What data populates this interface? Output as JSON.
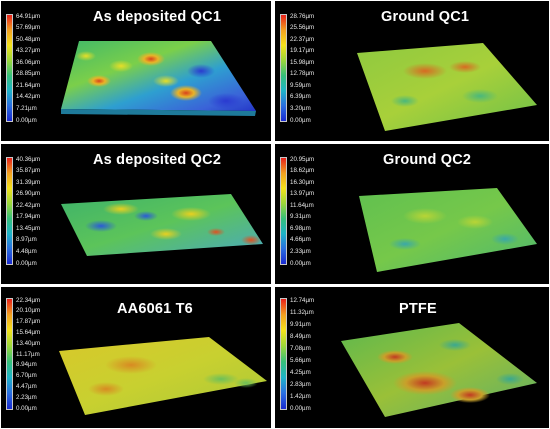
{
  "panels": [
    {
      "title": "As deposited QC1",
      "scale": [
        "64.91µm",
        "57.69µm",
        "50.48µm",
        "43.27µm",
        "36.06µm",
        "28.85µm",
        "21.64µm",
        "14.42µm",
        "7.21µm",
        "0.00µm"
      ],
      "surface": "rough-blue-green"
    },
    {
      "title": "Ground QC1",
      "scale": [
        "28.76µm",
        "25.56µm",
        "22.37µm",
        "19.17µm",
        "15.98µm",
        "12.78µm",
        "9.59µm",
        "6.39µm",
        "3.20µm",
        "0.00µm"
      ],
      "surface": "flat-green-yellow"
    },
    {
      "title": "As deposited QC2",
      "scale": [
        "40.36µm",
        "35.87µm",
        "31.39µm",
        "26.90µm",
        "22.42µm",
        "17.94µm",
        "13.45µm",
        "8.97µm",
        "4.48µm",
        "0.00µm"
      ],
      "surface": "rough-green-yellow"
    },
    {
      "title": "Ground QC2",
      "scale": [
        "20.95µm",
        "18.62µm",
        "16.30µm",
        "13.97µm",
        "11.64µm",
        "9.31µm",
        "6.98µm",
        "4.66µm",
        "2.33µm",
        "0.00µm"
      ],
      "surface": "flat-green"
    },
    {
      "title": "AA6061 T6",
      "scale": [
        "22.34µm",
        "20.10µm",
        "17.87µm",
        "15.64µm",
        "13.40µm",
        "11.17µm",
        "8.94µm",
        "6.70µm",
        "4.47µm",
        "2.23µm",
        "0.00µm"
      ],
      "surface": "flat-yellow"
    },
    {
      "title": "PTFE",
      "scale": [
        "12.74µm",
        "11.32µm",
        "9.91µm",
        "8.49µm",
        "7.08µm",
        "5.66µm",
        "4.25µm",
        "2.83µm",
        "1.42µm",
        "0.00µm"
      ],
      "surface": "flat-green-red"
    }
  ],
  "colorbar": [
    "#e8201a",
    "#f2a020",
    "#f4e21c",
    "#9cd83a",
    "#36c07a",
    "#1eb4c8",
    "#2a6ee0",
    "#1a2ad0"
  ]
}
